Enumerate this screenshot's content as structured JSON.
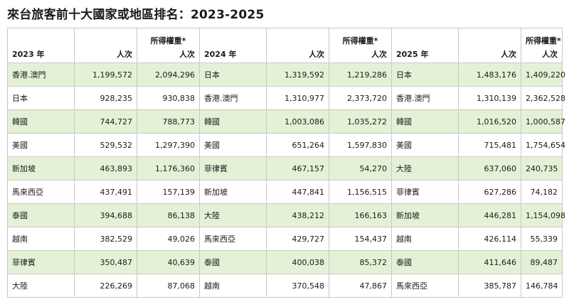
{
  "title": "來台旅客前十大國家或地區排名：2023-2025",
  "headers": {
    "y2023": "2023 年",
    "y2024": "2024 年",
    "y2025": "2025 年",
    "visits": "人次",
    "weighted_top": "所得權重*",
    "weighted_bottom": "人次"
  },
  "rows": [
    {
      "c2023": "香港.澳門",
      "v2023": "1,199,572",
      "w2023": "2,094,296",
      "c2024": "日本",
      "v2024": "1,319,592",
      "w2024": "1,219,286",
      "c2025": "日本",
      "v2025": "1,483,176",
      "w2025": "1,409,220"
    },
    {
      "c2023": "日本",
      "v2023": "928,235",
      "w2023": "930,838",
      "c2024": "香港.澳門",
      "v2024": "1,310,977",
      "w2024": "2,373,720",
      "c2025": "香港.澳門",
      "v2025": "1,310,139",
      "w2025": "2,362,528"
    },
    {
      "c2023": "韓國",
      "v2023": "744,727",
      "w2023": "788,773",
      "c2024": "韓國",
      "v2024": "1,003,086",
      "w2024": "1,035,272",
      "c2025": "韓國",
      "v2025": "1,016,520",
      "w2025": "1,000,587"
    },
    {
      "c2023": "美國",
      "v2023": "529,532",
      "w2023": "1,297,390",
      "c2024": "美國",
      "v2024": "651,264",
      "w2024": "1,597,830",
      "c2025": "美國",
      "v2025": "715,481",
      "w2025": "1,754,654"
    },
    {
      "c2023": "新加坡",
      "v2023": "463,893",
      "w2023": "1,176,360",
      "c2024": "菲律賓",
      "v2024": "467,157",
      "w2024": "54,270",
      "c2025": "大陸",
      "v2025": "637,060",
      "w2025": "240,735"
    },
    {
      "c2023": "馬來西亞",
      "v2023": "437,491",
      "w2023": "157,139",
      "c2024": "新加坡",
      "v2024": "447,841",
      "w2024": "1,156,515",
      "c2025": "菲律賓",
      "v2025": "627,286",
      "w2025": "74,182"
    },
    {
      "c2023": "泰國",
      "v2023": "394,688",
      "w2023": "86,138",
      "c2024": "大陸",
      "v2024": "438,212",
      "w2024": "166,163",
      "c2025": "新加坡",
      "v2025": "446,281",
      "w2025": "1,154,098"
    },
    {
      "c2023": "越南",
      "v2023": "382,529",
      "w2023": "49,026",
      "c2024": "馬來西亞",
      "v2024": "429,727",
      "w2024": "154,437",
      "c2025": "越南",
      "v2025": "426,114",
      "w2025": "55,339"
    },
    {
      "c2023": "菲律賓",
      "v2023": "350,487",
      "w2023": "40,639",
      "c2024": "泰國",
      "v2024": "400,038",
      "w2024": "85,372",
      "c2025": "泰國",
      "v2025": "411,646",
      "w2025": "89,487"
    },
    {
      "c2023": "大陸",
      "v2023": "226,269",
      "w2023": "87,068",
      "c2024": "越南",
      "v2024": "370,548",
      "w2024": "47,867",
      "c2025": "馬來西亞",
      "v2025": "385,787",
      "w2025": "146,784"
    }
  ],
  "colors": {
    "highlight_row": "#e4f1d6",
    "border": "#c9c9c9"
  }
}
